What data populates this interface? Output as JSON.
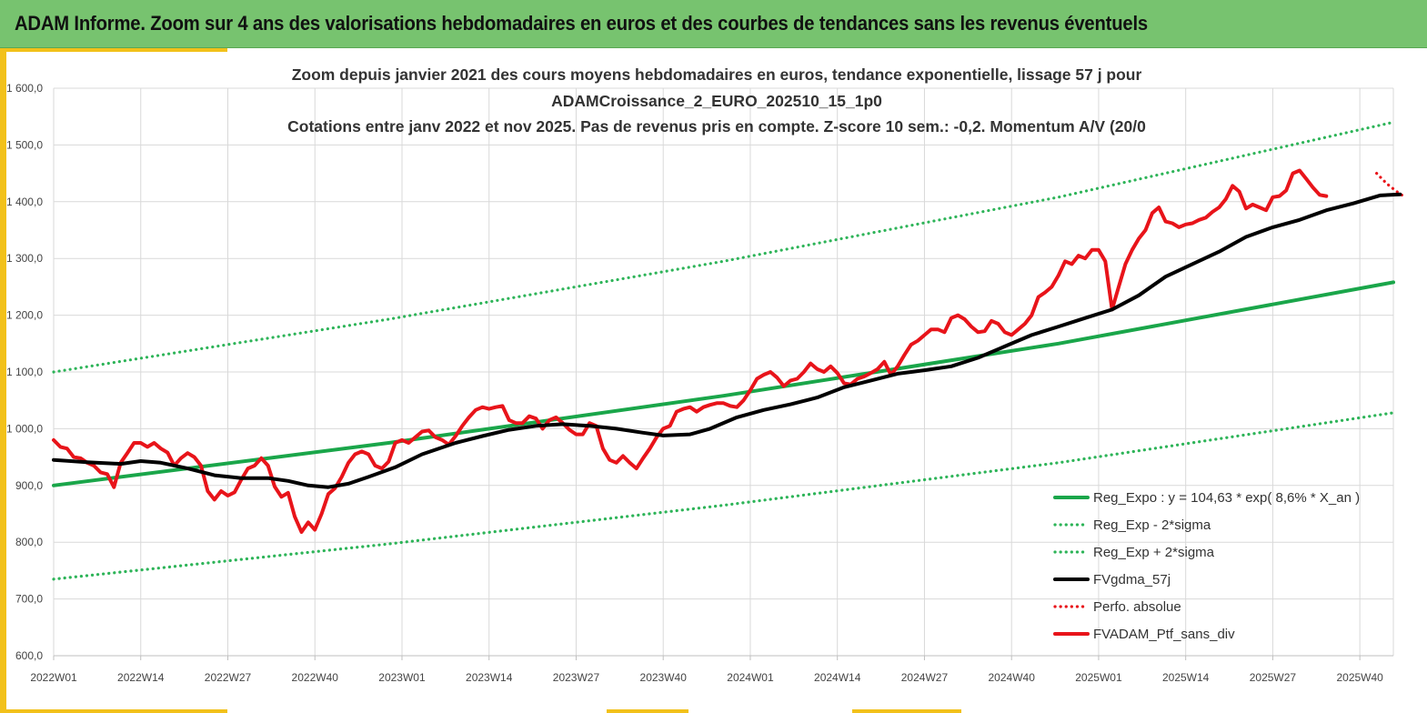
{
  "header": {
    "title": "ADAM Informe. Zoom sur 4 ans des valorisations hebdomadaires en euros et des courbes de tendances sans les revenus éventuels"
  },
  "colors": {
    "header_bg": "#77c36f",
    "accent": "#f2c11a",
    "regression": "#1aa64a",
    "sigma": "#2db458",
    "moving_average": "#000000",
    "portfolio": "#e8141a"
  },
  "chart_data": {
    "type": "line",
    "title_lines": [
      "Zoom depuis janvier 2021 des cours moyens hebdomadaires  en euros, tendance exponentielle, lissage 57 j pour",
      "ADAMCroissance_2_EURO_202510_15_1p0",
      "Cotations  entre janv 2022 et nov 2025. Pas de revenus pris en compte. Z-score 10 sem.: -0,2. Momentum A/V (20/0"
    ],
    "x_unit": "week index since 2022W01",
    "x_range": [
      0,
      200
    ],
    "x_ticks": [
      {
        "pos": 0,
        "label": "2022W01"
      },
      {
        "pos": 13,
        "label": "2022W14"
      },
      {
        "pos": 26,
        "label": "2022W27"
      },
      {
        "pos": 39,
        "label": "2022W40"
      },
      {
        "pos": 52,
        "label": "2023W01"
      },
      {
        "pos": 65,
        "label": "2023W14"
      },
      {
        "pos": 78,
        "label": "2023W27"
      },
      {
        "pos": 91,
        "label": "2023W40"
      },
      {
        "pos": 104,
        "label": "2024W01"
      },
      {
        "pos": 117,
        "label": "2024W14"
      },
      {
        "pos": 130,
        "label": "2024W27"
      },
      {
        "pos": 143,
        "label": "2024W40"
      },
      {
        "pos": 156,
        "label": "2025W01"
      },
      {
        "pos": 169,
        "label": "2025W14"
      },
      {
        "pos": 182,
        "label": "2025W27"
      },
      {
        "pos": 195,
        "label": "2025W40"
      }
    ],
    "ylim": [
      600,
      1600
    ],
    "y_ticks": [
      {
        "v": 600,
        "label": "600,0"
      },
      {
        "v": 700,
        "label": "700,0"
      },
      {
        "v": 800,
        "label": "800,0"
      },
      {
        "v": 900,
        "label": "900,0"
      },
      {
        "v": 1000,
        "label": "1 000,0"
      },
      {
        "v": 1100,
        "label": "1 100,0"
      },
      {
        "v": 1200,
        "label": "1 200,0"
      },
      {
        "v": 1300,
        "label": "1 300,0"
      },
      {
        "v": 1400,
        "label": "1 400,0"
      },
      {
        "v": 1500,
        "label": "1 500,0"
      },
      {
        "v": 1600,
        "label": "1 600,0"
      }
    ],
    "grid": true,
    "legend_position": "bottom-right",
    "series": [
      {
        "name": "Reg_Expo : y = 104,63 * exp( 8,6% *  X_an )",
        "style": "solid-thick",
        "color": "#1aa64a",
        "points": [
          [
            0,
            900
          ],
          [
            50,
            975
          ],
          [
            100,
            1058
          ],
          [
            150,
            1150
          ],
          [
            200,
            1258
          ]
        ]
      },
      {
        "name": "Reg_Exp - 2*sigma",
        "style": "dotted",
        "color": "#2db458",
        "points": [
          [
            0,
            735
          ],
          [
            50,
            797
          ],
          [
            100,
            865
          ],
          [
            150,
            940
          ],
          [
            200,
            1028
          ]
        ]
      },
      {
        "name": "Reg_Exp + 2*sigma",
        "style": "dotted",
        "color": "#2db458",
        "points": [
          [
            0,
            1100
          ],
          [
            50,
            1193
          ],
          [
            100,
            1295
          ],
          [
            150,
            1408
          ],
          [
            200,
            1540
          ]
        ]
      },
      {
        "name": "FVgdma_57j",
        "style": "solid-thick",
        "color": "#000000",
        "points": [
          [
            0,
            945
          ],
          [
            5,
            941
          ],
          [
            10,
            938
          ],
          [
            13,
            943
          ],
          [
            16,
            940
          ],
          [
            20,
            930
          ],
          [
            24,
            918
          ],
          [
            28,
            913
          ],
          [
            32,
            913
          ],
          [
            35,
            908
          ],
          [
            38,
            900
          ],
          [
            41,
            897
          ],
          [
            44,
            903
          ],
          [
            47,
            915
          ],
          [
            51,
            932
          ],
          [
            55,
            955
          ],
          [
            60,
            975
          ],
          [
            64,
            987
          ],
          [
            68,
            998
          ],
          [
            72,
            1005
          ],
          [
            76,
            1008
          ],
          [
            80,
            1005
          ],
          [
            84,
            1000
          ],
          [
            88,
            993
          ],
          [
            91,
            988
          ],
          [
            95,
            990
          ],
          [
            98,
            1000
          ],
          [
            102,
            1020
          ],
          [
            106,
            1033
          ],
          [
            110,
            1043
          ],
          [
            114,
            1055
          ],
          [
            118,
            1073
          ],
          [
            122,
            1085
          ],
          [
            126,
            1097
          ],
          [
            130,
            1103
          ],
          [
            134,
            1110
          ],
          [
            138,
            1125
          ],
          [
            142,
            1145
          ],
          [
            146,
            1165
          ],
          [
            150,
            1180
          ],
          [
            154,
            1195
          ],
          [
            158,
            1210
          ],
          [
            162,
            1235
          ],
          [
            166,
            1268
          ],
          [
            170,
            1290
          ],
          [
            174,
            1312
          ],
          [
            178,
            1338
          ],
          [
            182,
            1355
          ],
          [
            186,
            1368
          ],
          [
            190,
            1385
          ],
          [
            194,
            1397
          ],
          [
            198,
            1411
          ],
          [
            201,
            1413
          ]
        ]
      },
      {
        "name": "Perfo. absolue",
        "style": "dotted",
        "color": "#e8141a",
        "points": [
          [
            197.5,
            1450
          ],
          [
            199,
            1432
          ],
          [
            200.5,
            1418
          ],
          [
            201.5,
            1410
          ]
        ]
      },
      {
        "name": "FVADAM_Ptf_sans_div",
        "style": "solid-thick",
        "color": "#e8141a",
        "points": [
          [
            0,
            980
          ],
          [
            1,
            968
          ],
          [
            2,
            965
          ],
          [
            3,
            950
          ],
          [
            4,
            948
          ],
          [
            5,
            940
          ],
          [
            6,
            935
          ],
          [
            7,
            923
          ],
          [
            8,
            920
          ],
          [
            9,
            897
          ],
          [
            10,
            940
          ],
          [
            11,
            957
          ],
          [
            12,
            975
          ],
          [
            13,
            975
          ],
          [
            14,
            968
          ],
          [
            15,
            975
          ],
          [
            16,
            965
          ],
          [
            17,
            958
          ],
          [
            18,
            935
          ],
          [
            19,
            948
          ],
          [
            20,
            957
          ],
          [
            21,
            950
          ],
          [
            22,
            935
          ],
          [
            23,
            890
          ],
          [
            24,
            875
          ],
          [
            25,
            890
          ],
          [
            26,
            882
          ],
          [
            27,
            888
          ],
          [
            28,
            910
          ],
          [
            29,
            930
          ],
          [
            30,
            935
          ],
          [
            31,
            948
          ],
          [
            32,
            935
          ],
          [
            33,
            898
          ],
          [
            34,
            880
          ],
          [
            35,
            887
          ],
          [
            36,
            845
          ],
          [
            37,
            818
          ],
          [
            38,
            835
          ],
          [
            39,
            822
          ],
          [
            40,
            850
          ],
          [
            41,
            885
          ],
          [
            42,
            895
          ],
          [
            43,
            915
          ],
          [
            44,
            940
          ],
          [
            45,
            955
          ],
          [
            46,
            960
          ],
          [
            47,
            955
          ],
          [
            48,
            935
          ],
          [
            49,
            930
          ],
          [
            50,
            942
          ],
          [
            51,
            975
          ],
          [
            52,
            980
          ],
          [
            53,
            975
          ],
          [
            54,
            985
          ],
          [
            55,
            995
          ],
          [
            56,
            997
          ],
          [
            57,
            985
          ],
          [
            58,
            980
          ],
          [
            59,
            972
          ],
          [
            60,
            987
          ],
          [
            61,
            1005
          ],
          [
            62,
            1020
          ],
          [
            63,
            1033
          ],
          [
            64,
            1038
          ],
          [
            65,
            1035
          ],
          [
            66,
            1038
          ],
          [
            67,
            1040
          ],
          [
            68,
            1015
          ],
          [
            69,
            1010
          ],
          [
            70,
            1010
          ],
          [
            71,
            1022
          ],
          [
            72,
            1018
          ],
          [
            73,
            1000
          ],
          [
            74,
            1015
          ],
          [
            75,
            1020
          ],
          [
            76,
            1010
          ],
          [
            77,
            998
          ],
          [
            78,
            990
          ],
          [
            79,
            990
          ],
          [
            80,
            1010
          ],
          [
            81,
            1005
          ],
          [
            82,
            965
          ],
          [
            83,
            945
          ],
          [
            84,
            940
          ],
          [
            85,
            952
          ],
          [
            86,
            940
          ],
          [
            87,
            930
          ],
          [
            88,
            948
          ],
          [
            89,
            965
          ],
          [
            90,
            985
          ],
          [
            91,
            1000
          ],
          [
            92,
            1005
          ],
          [
            93,
            1030
          ],
          [
            94,
            1035
          ],
          [
            95,
            1038
          ],
          [
            96,
            1030
          ],
          [
            97,
            1038
          ],
          [
            98,
            1042
          ],
          [
            99,
            1045
          ],
          [
            100,
            1045
          ],
          [
            101,
            1040
          ],
          [
            102,
            1038
          ],
          [
            103,
            1050
          ],
          [
            104,
            1068
          ],
          [
            105,
            1088
          ],
          [
            106,
            1095
          ],
          [
            107,
            1100
          ],
          [
            108,
            1090
          ],
          [
            109,
            1075
          ],
          [
            110,
            1085
          ],
          [
            111,
            1088
          ],
          [
            112,
            1100
          ],
          [
            113,
            1115
          ],
          [
            114,
            1105
          ],
          [
            115,
            1100
          ],
          [
            116,
            1110
          ],
          [
            117,
            1098
          ],
          [
            118,
            1080
          ],
          [
            119,
            1078
          ],
          [
            120,
            1088
          ],
          [
            121,
            1092
          ],
          [
            122,
            1098
          ],
          [
            123,
            1105
          ],
          [
            124,
            1118
          ],
          [
            125,
            1095
          ],
          [
            126,
            1110
          ],
          [
            127,
            1130
          ],
          [
            128,
            1148
          ],
          [
            129,
            1155
          ],
          [
            130,
            1165
          ],
          [
            131,
            1175
          ],
          [
            132,
            1175
          ],
          [
            133,
            1170
          ],
          [
            134,
            1195
          ],
          [
            135,
            1200
          ],
          [
            136,
            1193
          ],
          [
            137,
            1180
          ],
          [
            138,
            1170
          ],
          [
            139,
            1172
          ],
          [
            140,
            1190
          ],
          [
            141,
            1185
          ],
          [
            142,
            1170
          ],
          [
            143,
            1165
          ],
          [
            144,
            1175
          ],
          [
            145,
            1185
          ],
          [
            146,
            1200
          ],
          [
            147,
            1232
          ],
          [
            148,
            1240
          ],
          [
            149,
            1250
          ],
          [
            150,
            1270
          ],
          [
            151,
            1295
          ],
          [
            152,
            1290
          ],
          [
            153,
            1305
          ],
          [
            154,
            1300
          ],
          [
            155,
            1315
          ],
          [
            156,
            1315
          ],
          [
            157,
            1295
          ],
          [
            158,
            1210
          ],
          [
            159,
            1250
          ],
          [
            160,
            1290
          ],
          [
            161,
            1315
          ],
          [
            162,
            1335
          ],
          [
            163,
            1350
          ],
          [
            164,
            1380
          ],
          [
            165,
            1390
          ],
          [
            166,
            1365
          ],
          [
            167,
            1362
          ],
          [
            168,
            1355
          ],
          [
            169,
            1360
          ],
          [
            170,
            1362
          ],
          [
            171,
            1368
          ],
          [
            172,
            1372
          ],
          [
            173,
            1382
          ],
          [
            174,
            1390
          ],
          [
            175,
            1405
          ],
          [
            176,
            1428
          ],
          [
            177,
            1418
          ],
          [
            178,
            1388
          ],
          [
            179,
            1395
          ],
          [
            180,
            1390
          ],
          [
            181,
            1385
          ],
          [
            182,
            1408
          ],
          [
            183,
            1410
          ],
          [
            184,
            1420
          ],
          [
            185,
            1450
          ],
          [
            186,
            1455
          ],
          [
            187,
            1440
          ],
          [
            188,
            1425
          ],
          [
            189,
            1412
          ],
          [
            190,
            1410
          ]
        ]
      }
    ]
  }
}
